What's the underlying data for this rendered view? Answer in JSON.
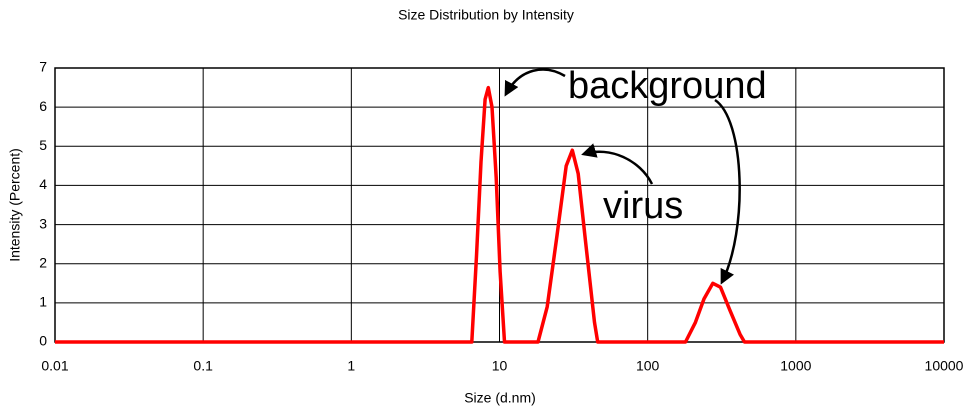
{
  "chart_data": {
    "type": "line",
    "title": "Size Distribution by Intensity",
    "x_label": "Size (d.nm)",
    "y_label": "Intensity (Percent)",
    "log_x": true,
    "grid": true,
    "color": "#ff0000",
    "x": [
      0.01,
      6.5,
      7.0,
      7.5,
      8.0,
      8.4,
      8.9,
      9.5,
      10.1,
      10.8,
      18.2,
      21,
      24.4,
      28.2,
      31,
      34,
      38,
      43.8,
      46,
      180,
      210,
      240,
      275,
      310,
      360,
      420,
      450,
      10000
    ],
    "values": [
      0,
      0,
      2.2,
      4.6,
      6.2,
      6.5,
      6.0,
      4.2,
      1.8,
      0,
      0,
      0.9,
      2.7,
      4.5,
      4.9,
      4.3,
      2.6,
      0.5,
      0,
      0,
      0.5,
      1.1,
      1.5,
      1.4,
      0.8,
      0.2,
      0,
      0
    ],
    "xlim": [
      0.01,
      10000
    ],
    "xticks": [
      0.01,
      0.1,
      1,
      10,
      100,
      1000,
      10000
    ],
    "ylim": [
      0,
      7
    ],
    "yticks": [
      0,
      1,
      2,
      3,
      4,
      5,
      6,
      7
    ],
    "annotations": [
      "background",
      "virus"
    ]
  }
}
